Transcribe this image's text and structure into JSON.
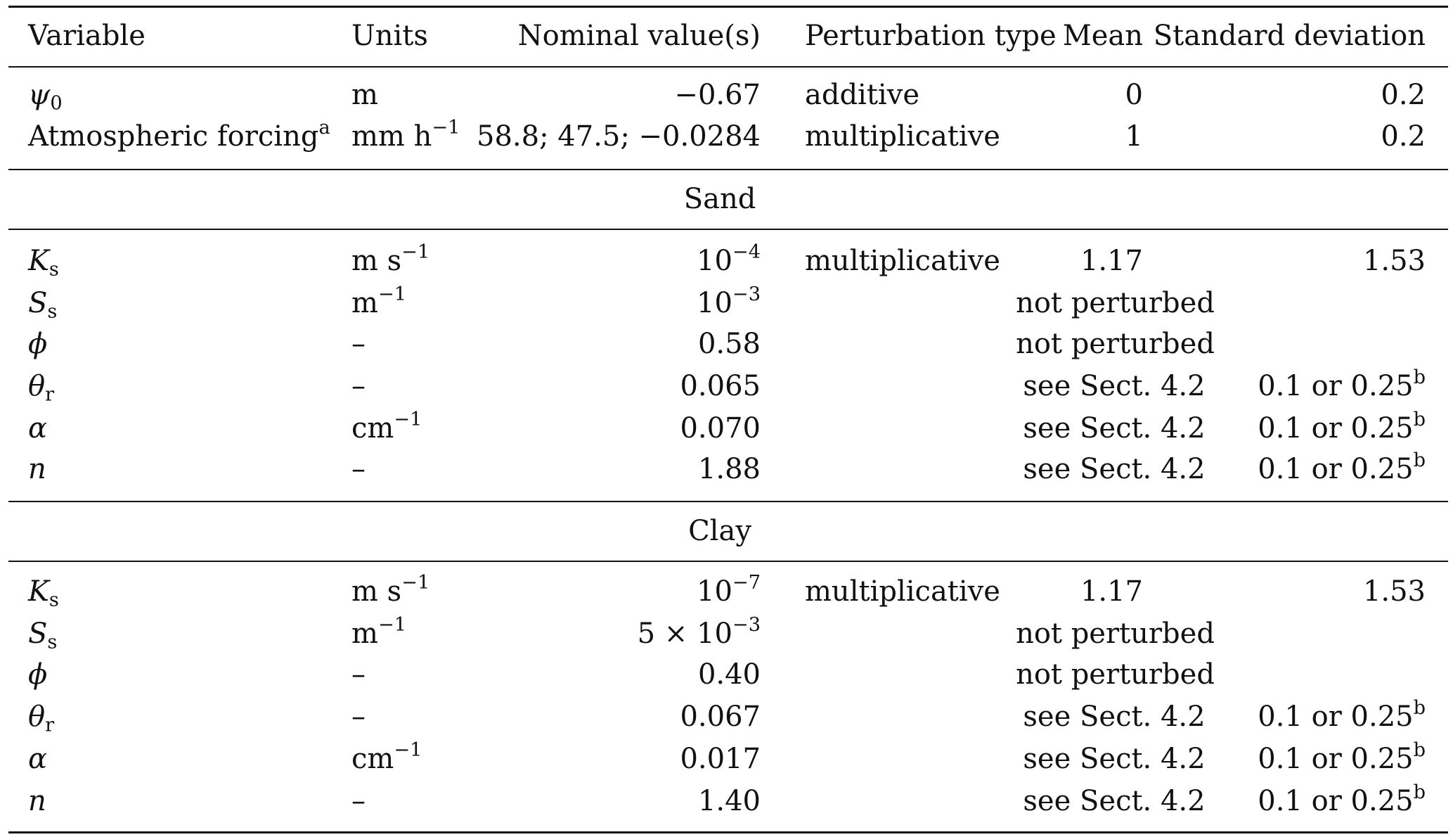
{
  "header": {
    "variable": "Variable",
    "units": "Units",
    "nominal": "Nominal value(s)",
    "perturbation_type": "Perturbation type",
    "mean": "Mean",
    "sd": "Standard deviation"
  },
  "general_rows": [
    {
      "var": "ψ",
      "var_sub": "0",
      "var_sup": "",
      "units": "m",
      "units_sup": "",
      "nominal": "−0.67",
      "nominal_sup": "",
      "type": "additive",
      "mean": "0",
      "sd": "0.2",
      "sd_sup": ""
    },
    {
      "var": "Atmospheric forcing",
      "var_sub": "",
      "var_sup": "a",
      "units": "mm h",
      "units_sup": "−1",
      "nominal": "58.8; 47.5; −0.0284",
      "nominal_sup": "",
      "type": "multiplicative",
      "mean": "1",
      "sd": "0.2",
      "sd_sup": ""
    }
  ],
  "sections": [
    {
      "title": "Sand",
      "rows": [
        {
          "var": "K",
          "var_sub": "s",
          "units": "m s",
          "units_sup": "−1",
          "nominal": "10",
          "nominal_sup": "−4",
          "type": "multiplicative",
          "mean": "1.17",
          "sd": "1.53",
          "sd_sup": ""
        },
        {
          "var": "S",
          "var_sub": "s",
          "units": "m",
          "units_sup": "−1",
          "nominal": "10",
          "nominal_sup": "−3",
          "span": "not perturbed"
        },
        {
          "var": "ϕ",
          "var_sub": "",
          "units": "–",
          "units_sup": "",
          "nominal": "0.58",
          "nominal_sup": "",
          "span": "not perturbed"
        },
        {
          "var": "θ",
          "var_sub": "r",
          "units": "–",
          "units_sup": "",
          "nominal": "0.065",
          "nominal_sup": "",
          "see": "see Sect. 4.2",
          "sd": "0.1 or 0.25",
          "sd_sup": "b"
        },
        {
          "var": "α",
          "var_sub": "",
          "units": "cm",
          "units_sup": "−1",
          "nominal": "0.070",
          "nominal_sup": "",
          "see": "see Sect. 4.2",
          "sd": "0.1 or 0.25",
          "sd_sup": "b"
        },
        {
          "var": "n",
          "var_sub": "",
          "units": "–",
          "units_sup": "",
          "nominal": "1.88",
          "nominal_sup": "",
          "see": "see Sect. 4.2",
          "sd": "0.1 or 0.25",
          "sd_sup": "b"
        }
      ]
    },
    {
      "title": "Clay",
      "rows": [
        {
          "var": "K",
          "var_sub": "s",
          "units": "m s",
          "units_sup": "−1",
          "nominal": "10",
          "nominal_sup": "−7",
          "type": "multiplicative",
          "mean": "1.17",
          "sd": "1.53",
          "sd_sup": ""
        },
        {
          "var": "S",
          "var_sub": "s",
          "units": "m",
          "units_sup": "−1",
          "nominal": "5 × 10",
          "nominal_sup": "−3",
          "span": "not perturbed"
        },
        {
          "var": "ϕ",
          "var_sub": "",
          "units": "–",
          "units_sup": "",
          "nominal": "0.40",
          "nominal_sup": "",
          "span": "not perturbed"
        },
        {
          "var": "θ",
          "var_sub": "r",
          "units": "–",
          "units_sup": "",
          "nominal": "0.067",
          "nominal_sup": "",
          "see": "see Sect. 4.2",
          "sd": "0.1 or 0.25",
          "sd_sup": "b"
        },
        {
          "var": "α",
          "var_sub": "",
          "units": "cm",
          "units_sup": "−1",
          "nominal": "0.017",
          "nominal_sup": "",
          "see": "see Sect. 4.2",
          "sd": "0.1 or 0.25",
          "sd_sup": "b"
        },
        {
          "var": "n",
          "var_sub": "",
          "units": "–",
          "units_sup": "",
          "nominal": "1.40",
          "nominal_sup": "",
          "see": "see Sect. 4.2",
          "sd": "0.1 or 0.25",
          "sd_sup": "b"
        }
      ]
    }
  ]
}
